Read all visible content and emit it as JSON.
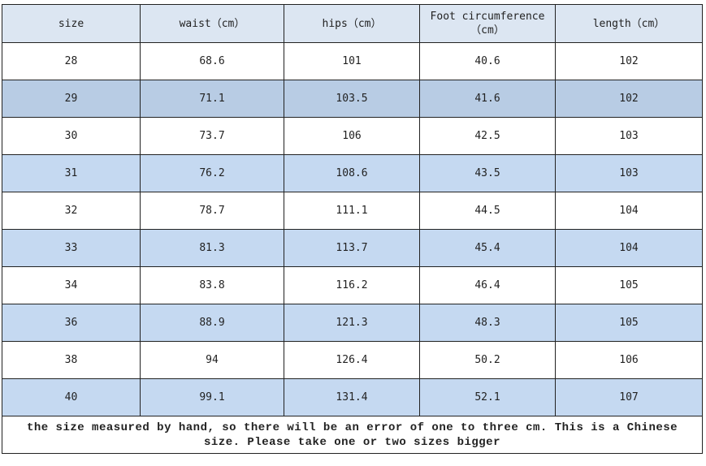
{
  "table": {
    "header": [
      "size",
      "waist（cm）",
      "hips（cm）",
      "Foot circumference（cm）",
      "length（cm）"
    ],
    "rows": [
      [
        28,
        68.6,
        101,
        40.6,
        102
      ],
      [
        29,
        71.1,
        103.5,
        41.6,
        102
      ],
      [
        30,
        73.7,
        106,
        42.5,
        103
      ],
      [
        31,
        76.2,
        108.6,
        43.5,
        103
      ],
      [
        32,
        78.7,
        111.1,
        44.5,
        104
      ],
      [
        33,
        81.3,
        113.7,
        45.4,
        104
      ],
      [
        34,
        83.8,
        116.2,
        46.4,
        105
      ],
      [
        36,
        88.9,
        121.3,
        48.3,
        105
      ],
      [
        38,
        94,
        126.4,
        50.2,
        106
      ],
      [
        40,
        99.1,
        131.4,
        52.1,
        107
      ]
    ],
    "note": "the size measured by hand, so there will be an error of one to three cm. This is a Chinese size. Please take one or two sizes bigger"
  }
}
